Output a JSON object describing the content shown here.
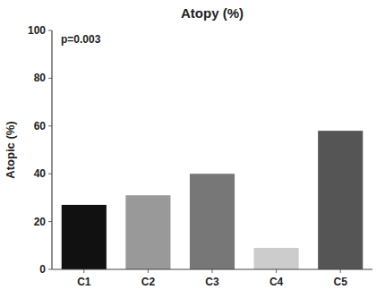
{
  "chart_data": {
    "type": "bar",
    "title": "Atopy (%)",
    "ylabel": "Atopic (%)",
    "categories": [
      "C1",
      "C2",
      "C3",
      "C4",
      "C5"
    ],
    "values": [
      27,
      31,
      40,
      9,
      58
    ],
    "colors": [
      "#111111",
      "#999999",
      "#777777",
      "#cccccc",
      "#555555"
    ],
    "ylim": [
      0,
      100
    ],
    "yticks": [
      0,
      20,
      40,
      60,
      80,
      100
    ],
    "annotations": [
      "p=0.003"
    ],
    "grid": false
  }
}
